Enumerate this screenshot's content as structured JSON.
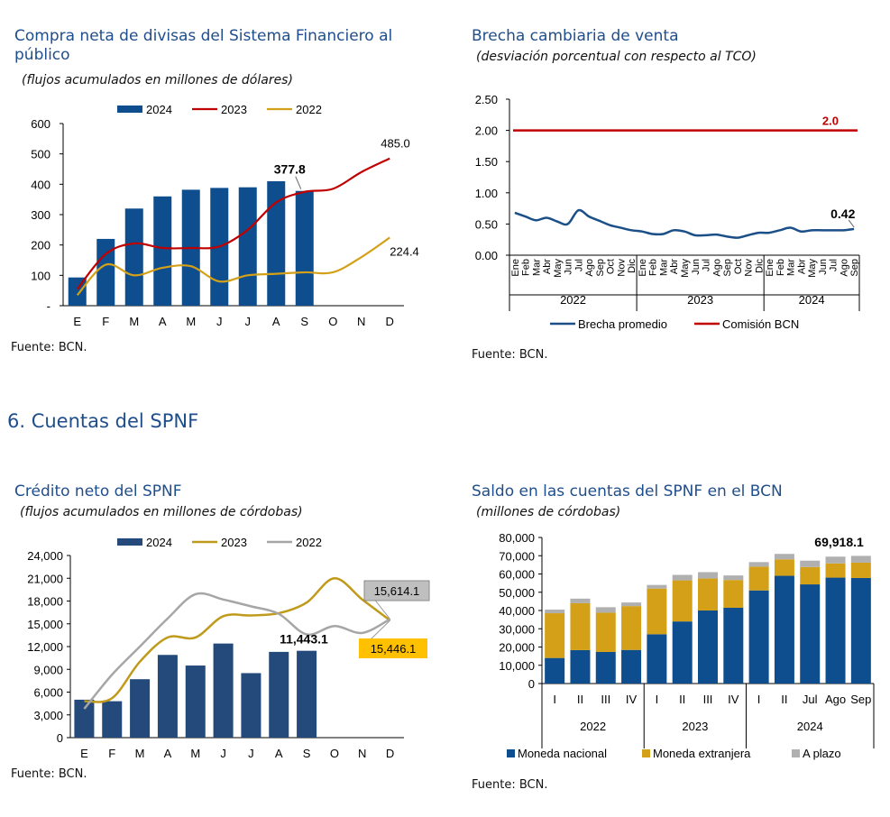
{
  "section_heading": "6.  Cuentas del SPNF",
  "chart_data": [
    {
      "id": "chart1",
      "type": "bar",
      "title": "Compra neta de divisas del Sistema Financiero al público",
      "subtitle": "(flujos acumulados en millones de dólares)",
      "source": "Fuente: BCN.",
      "categories": [
        "E",
        "F",
        "M",
        "A",
        "M",
        "J",
        "J",
        "A",
        "S",
        "O",
        "N",
        "D"
      ],
      "ylim": [
        0,
        600
      ],
      "yticks": [
        0,
        100,
        200,
        300,
        400,
        500,
        600
      ],
      "ytick_labels": [
        "-",
        "100",
        "200",
        "300",
        "400",
        "500",
        "600"
      ],
      "legend_position": "top",
      "series": [
        {
          "name": "2024",
          "type": "bar",
          "color": "#0e4e8e",
          "values": [
            93,
            220,
            320,
            360,
            382,
            388,
            390,
            410,
            378,
            null,
            null,
            null
          ]
        },
        {
          "name": "2023",
          "type": "line",
          "color": "#c00000",
          "values": [
            55,
            170,
            205,
            190,
            190,
            195,
            250,
            340,
            375,
            385,
            440,
            485
          ]
        },
        {
          "name": "2022",
          "type": "line",
          "color": "#d4a017",
          "values": [
            35,
            135,
            100,
            125,
            130,
            80,
            100,
            105,
            110,
            110,
            160,
            224.4
          ]
        }
      ],
      "annotations": [
        {
          "text": "377.8",
          "bold": true
        },
        {
          "text": "485.0",
          "bold": false
        },
        {
          "text": "224.4",
          "bold": false
        }
      ]
    },
    {
      "id": "chart2",
      "type": "line",
      "title": "Brecha cambiaria de venta",
      "subtitle": "(desviación porcentual con respecto al TCO)",
      "source": "Fuente: BCN.",
      "x_labels": [
        "Ene",
        "Feb",
        "Mar",
        "Abr",
        "May",
        "Jun",
        "Jul",
        "Ago",
        "Sep",
        "Oct",
        "Nov",
        "Dic",
        "Ene",
        "Feb",
        "Mar",
        "Abr",
        "May",
        "Jun",
        "Jul",
        "Ago",
        "Sep",
        "Oct",
        "Nov",
        "Dic",
        "Ene",
        "Feb",
        "Mar",
        "Abr",
        "May",
        "Jun",
        "Jul",
        "Ago",
        "Sep"
      ],
      "year_groups": [
        {
          "label": "2022",
          "count": 12
        },
        {
          "label": "2023",
          "count": 12
        },
        {
          "label": "2024",
          "count": 9
        }
      ],
      "ylim": [
        0,
        2.5
      ],
      "yticks": [
        0,
        0.5,
        1.0,
        1.5,
        2.0,
        2.5
      ],
      "ytick_labels": [
        "0.00",
        "0.50",
        "1.00",
        "1.50",
        "2.00",
        "2.50"
      ],
      "legend_position": "bottom",
      "series": [
        {
          "name": "Brecha promedio",
          "color": "#1a4f87",
          "values": [
            0.68,
            0.62,
            0.56,
            0.6,
            0.54,
            0.5,
            0.72,
            0.62,
            0.55,
            0.48,
            0.44,
            0.4,
            0.38,
            0.34,
            0.34,
            0.4,
            0.38,
            0.32,
            0.32,
            0.33,
            0.3,
            0.28,
            0.32,
            0.36,
            0.36,
            0.4,
            0.44,
            0.38,
            0.4,
            0.4,
            0.4,
            0.4,
            0.42
          ]
        },
        {
          "name": "Comisión BCN",
          "color": "#c00000",
          "values": [
            2.0,
            2.0,
            2.0,
            2.0,
            2.0,
            2.0,
            2.0,
            2.0,
            2.0,
            2.0,
            2.0,
            2.0,
            2.0,
            2.0,
            2.0,
            2.0,
            2.0,
            2.0,
            2.0,
            2.0,
            2.0,
            2.0,
            2.0,
            2.0,
            2.0,
            2.0,
            2.0,
            2.0,
            2.0,
            2.0,
            2.0,
            2.0,
            2.0
          ]
        }
      ],
      "annotations": [
        {
          "text": "2.0",
          "color": "#c00000"
        },
        {
          "text": "0.42",
          "color": "#000000"
        }
      ]
    },
    {
      "id": "chart3",
      "type": "bar",
      "title": "Crédito neto del SPNF",
      "subtitle": "(flujos acumulados en millones de córdobas)",
      "source": "Fuente: BCN.",
      "categories": [
        "E",
        "F",
        "M",
        "A",
        "M",
        "J",
        "J",
        "A",
        "S",
        "O",
        "N",
        "D"
      ],
      "ylim": [
        0,
        24000
      ],
      "yticks": [
        0,
        3000,
        6000,
        9000,
        12000,
        15000,
        18000,
        21000,
        24000
      ],
      "ytick_labels": [
        "0",
        "3,000",
        "6,000",
        "9,000",
        "12,000",
        "15,000",
        "18,000",
        "21,000",
        "24,000"
      ],
      "legend_position": "top",
      "series": [
        {
          "name": "2024",
          "type": "bar",
          "color": "#234a7a",
          "values": [
            5000,
            4800,
            7700,
            10900,
            9500,
            12400,
            8500,
            11300,
            11443.1,
            null,
            null,
            null
          ]
        },
        {
          "name": "2023",
          "type": "line",
          "color": "#c09a1a",
          "values": [
            4800,
            5200,
            10000,
            13200,
            13200,
            16000,
            16100,
            16400,
            17800,
            21000,
            18200,
            15446.1
          ]
        },
        {
          "name": "2022",
          "type": "line",
          "color": "#a6a6a6",
          "values": [
            3800,
            8300,
            12000,
            15700,
            18900,
            18200,
            17300,
            16300,
            13600,
            14700,
            13800,
            15614.1
          ]
        }
      ],
      "annotations": [
        {
          "text": "11,443.1",
          "bold": true
        },
        {
          "text": "15,614.1",
          "bg": "#bfbfbf"
        },
        {
          "text": "15,446.1",
          "bg": "#ffc000"
        }
      ]
    },
    {
      "id": "chart4",
      "type": "bar",
      "stacked": true,
      "title": "Saldo en las cuentas del SPNF en el BCN",
      "subtitle": "(millones de córdobas)",
      "source": "Fuente: BCN.",
      "categories": [
        "I",
        "II",
        "III",
        "IV",
        "I",
        "II",
        "III",
        "IV",
        "I",
        "II",
        "Jul",
        "Ago",
        "Sep"
      ],
      "year_groups": [
        {
          "label": "2022",
          "count": 4
        },
        {
          "label": "2023",
          "count": 4
        },
        {
          "label": "2024",
          "count": 5
        }
      ],
      "ylim": [
        0,
        80000
      ],
      "yticks": [
        0,
        10000,
        20000,
        30000,
        40000,
        50000,
        60000,
        70000,
        80000
      ],
      "ytick_labels": [
        "0",
        "10,000",
        "20,000",
        "30,000",
        "40,000",
        "50,000",
        "60,000",
        "70,000",
        "80,000"
      ],
      "legend_position": "bottom",
      "series": [
        {
          "name": "Moneda nacional",
          "color": "#0e4e8e",
          "values": [
            14000,
            18300,
            17300,
            18400,
            27000,
            34000,
            40000,
            41500,
            51000,
            59000,
            54300,
            58000,
            57800
          ]
        },
        {
          "name": "Moneda extranjera",
          "color": "#d4a017",
          "values": [
            24500,
            25700,
            21500,
            24000,
            25000,
            22500,
            17500,
            15200,
            13000,
            9000,
            9500,
            7800,
            8400
          ]
        },
        {
          "name": "A plazo",
          "color": "#b0b0b0",
          "values": [
            2000,
            2500,
            3000,
            2000,
            2000,
            3000,
            3500,
            2500,
            2500,
            3000,
            3500,
            3700,
            3718.1
          ]
        }
      ],
      "annotations": [
        {
          "text": "69,918.1",
          "bold": true
        }
      ]
    }
  ]
}
